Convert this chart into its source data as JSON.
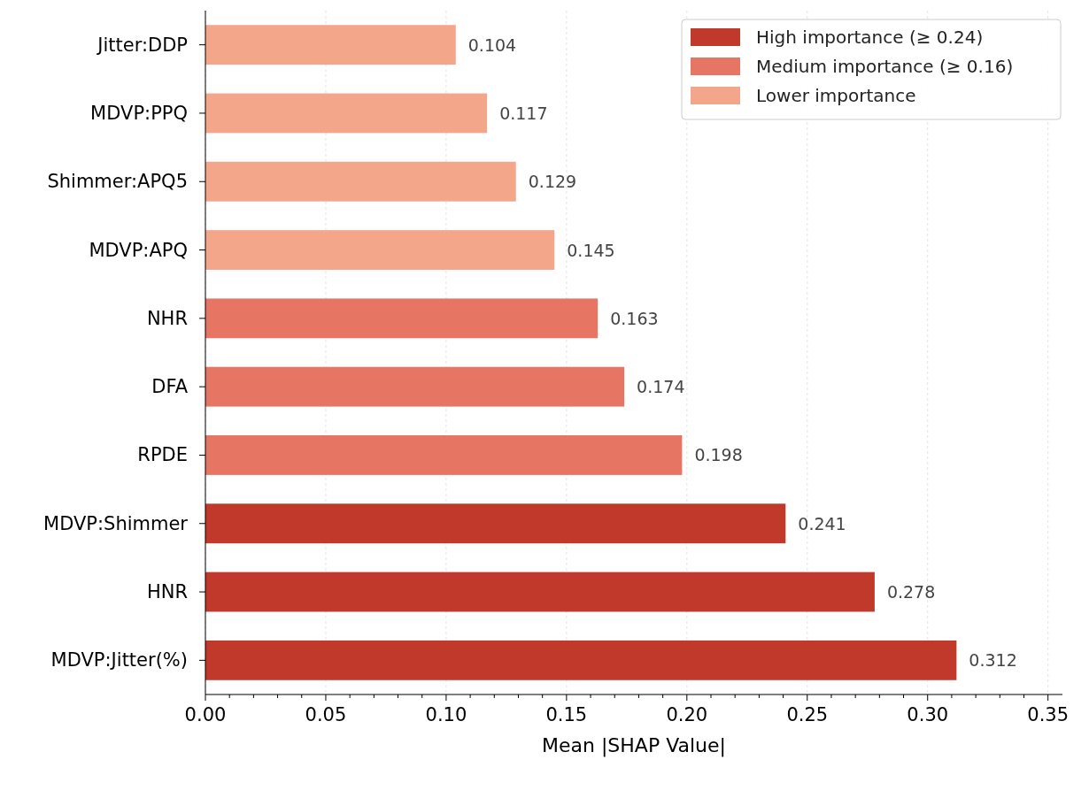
{
  "chart_data": {
    "type": "bar",
    "orientation": "horizontal",
    "xlabel": "Mean |SHAP Value|",
    "categories": [
      "Jitter:DDP",
      "MDVP:PPQ",
      "Shimmer:APQ5",
      "MDVP:APQ",
      "NHR",
      "DFA",
      "RPDE",
      "MDVP:Shimmer",
      "HNR",
      "MDVP:Jitter(%)"
    ],
    "series": [
      {
        "name": "High importance (≥ 0.24)",
        "color": "#c0392b",
        "values": [
          null,
          null,
          null,
          null,
          null,
          null,
          null,
          0.241,
          0.278,
          0.312
        ]
      },
      {
        "name": "Medium importance (≥ 0.16)",
        "color": "#e67563",
        "values": [
          null,
          null,
          null,
          null,
          0.163,
          0.174,
          0.198,
          null,
          null,
          null
        ]
      },
      {
        "name": "Lower importance",
        "color": "#f4a68b",
        "values": [
          0.104,
          0.117,
          0.129,
          0.145,
          null,
          null,
          null,
          null,
          null,
          null
        ]
      }
    ],
    "xlim": [
      0,
      0.356
    ],
    "xticks": [
      {
        "value": 0.01,
        "label": null
      },
      {
        "value": 0.02,
        "label": null
      },
      {
        "value": 0.03,
        "label": null
      },
      {
        "value": 0.04,
        "label": null
      },
      {
        "value": 0,
        "label": "0.00"
      },
      {
        "value": 0.05,
        "label": "0.05"
      },
      {
        "value": 0.06,
        "label": null
      },
      {
        "value": 0.07,
        "label": null
      },
      {
        "value": 0.08,
        "label": null
      },
      {
        "value": 0.09,
        "label": null
      },
      {
        "value": 0.1,
        "label": "0.10"
      },
      {
        "value": 0.11,
        "label": null
      },
      {
        "value": 0.12,
        "label": null
      },
      {
        "value": 0.13,
        "label": null
      },
      {
        "value": 0.14,
        "label": null
      },
      {
        "value": 0.15,
        "label": "0.15"
      },
      {
        "value": 0.16,
        "label": null
      },
      {
        "value": 0.17,
        "label": null
      },
      {
        "value": 0.18,
        "label": null
      },
      {
        "value": 0.19,
        "label": null
      },
      {
        "value": 0.2,
        "label": "0.20"
      },
      {
        "value": 0.21,
        "label": null
      },
      {
        "value": 0.22,
        "label": null
      },
      {
        "value": 0.23,
        "label": null
      },
      {
        "value": 0.24,
        "label": null
      },
      {
        "value": 0.25,
        "label": "0.25"
      },
      {
        "value": 0.26,
        "label": null
      },
      {
        "value": 0.27,
        "label": null
      },
      {
        "value": 0.28,
        "label": null
      },
      {
        "value": 0.29,
        "label": null
      },
      {
        "value": 0.3,
        "label": "0.30"
      },
      {
        "value": 0.31,
        "label": null
      },
      {
        "value": 0.32,
        "label": null
      },
      {
        "value": 0.33,
        "label": null
      },
      {
        "value": 0.34,
        "label": null
      },
      {
        "value": 0.35,
        "label": "0.35"
      }
    ],
    "grid": "x",
    "legend": "top right",
    "data_labels": true
  }
}
